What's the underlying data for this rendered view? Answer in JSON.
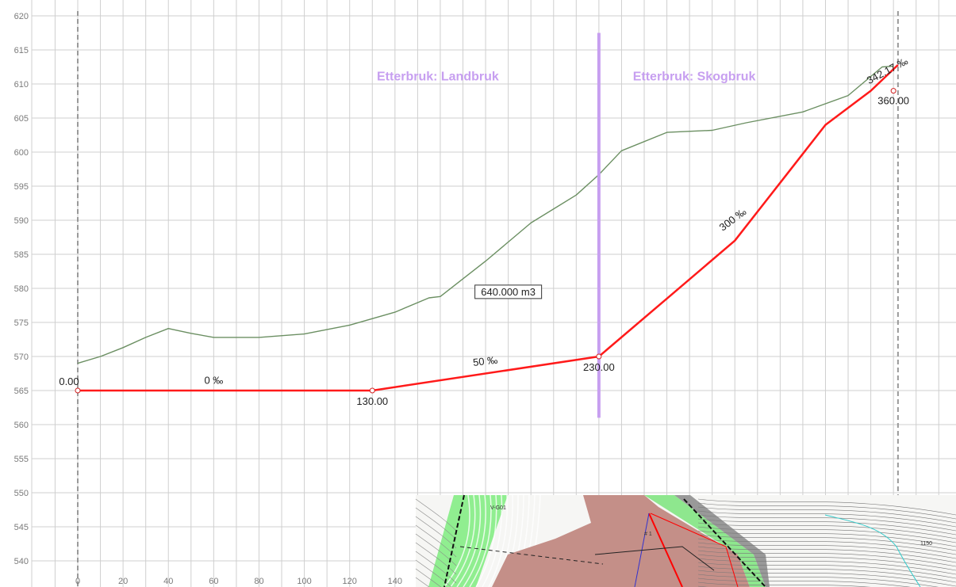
{
  "chart_data": {
    "type": "line",
    "title": "",
    "xlabel": "",
    "ylabel": "",
    "xlim": [
      -5,
      377
    ],
    "ylim": [
      537,
      621
    ],
    "x_ticks": [
      0,
      20,
      40,
      60,
      80,
      100,
      120,
      140
    ],
    "y_ticks": [
      540,
      545,
      550,
      555,
      560,
      565,
      570,
      575,
      580,
      585,
      590,
      595,
      600,
      605,
      610,
      615,
      620
    ],
    "y_tick_labels": [
      "540",
      "545",
      "550",
      "555",
      "560",
      "565",
      "570",
      "575",
      "580",
      "585",
      "590",
      "595",
      "600",
      "605",
      "610",
      "615",
      "620"
    ],
    "grid": true,
    "series": [
      {
        "name": "",
        "color": "#6b8f62",
        "points": [
          [
            0,
            569
          ],
          [
            10,
            570
          ],
          [
            20,
            571.3
          ],
          [
            30,
            572.8
          ],
          [
            40,
            574.1
          ],
          [
            50,
            573.4
          ],
          [
            60,
            572.8
          ],
          [
            80,
            572.8
          ],
          [
            100,
            573.3
          ],
          [
            120,
            574.6
          ],
          [
            140,
            576.5
          ],
          [
            155,
            578.6
          ],
          [
            160,
            578.8
          ],
          [
            180,
            584
          ],
          [
            200,
            589.6
          ],
          [
            220,
            593.7
          ],
          [
            230,
            596.7
          ],
          [
            240,
            600.2
          ],
          [
            260,
            602.9
          ],
          [
            280,
            603.2
          ],
          [
            295,
            604.3
          ],
          [
            320,
            605.9
          ],
          [
            340,
            608.3
          ],
          [
            355,
            612.5
          ],
          [
            360,
            612.6
          ]
        ]
      },
      {
        "name": "",
        "color": "#ff1a1a",
        "points": [
          [
            0,
            565
          ],
          [
            130,
            565
          ],
          [
            230,
            570
          ],
          [
            260,
            578.5
          ],
          [
            290,
            587
          ],
          [
            310,
            595.5
          ],
          [
            330,
            604
          ],
          [
            350,
            609
          ],
          [
            362,
            612.8
          ]
        ]
      }
    ],
    "stations": [
      {
        "x": 0,
        "y": 565,
        "label": "0.00"
      },
      {
        "x": 130,
        "y": 565,
        "label": "130.00"
      },
      {
        "x": 230,
        "y": 570,
        "label": "230.00"
      },
      {
        "x": 360,
        "y": 609,
        "label": "360.00"
      }
    ],
    "grade_labels": [
      {
        "text": "0 ‰",
        "x": 60,
        "y": 566
      },
      {
        "text": "50 ‰",
        "x": 180,
        "y": 568.8
      },
      {
        "text": "300 ‰",
        "x": 290,
        "y": 589.7
      },
      {
        "text": "342.17 ‰",
        "x": 358,
        "y": 611.5
      }
    ],
    "annotations": [
      {
        "text": "Etterbruk: Landbruk",
        "x": 132,
        "y": 610.5
      },
      {
        "text": "Etterbruk: Skogbruk",
        "x": 245,
        "y": 610.5
      },
      {
        "text": "640.000 m3",
        "x": 190,
        "y": 579.2
      }
    ],
    "divider": {
      "x": 230,
      "y_from": 561,
      "y_to": 617.5,
      "color": "#c79ff0"
    },
    "boundaries": [
      0,
      362
    ],
    "inset_map": {
      "labels": [
        "V-G01",
        "# 1",
        "1150"
      ]
    }
  }
}
